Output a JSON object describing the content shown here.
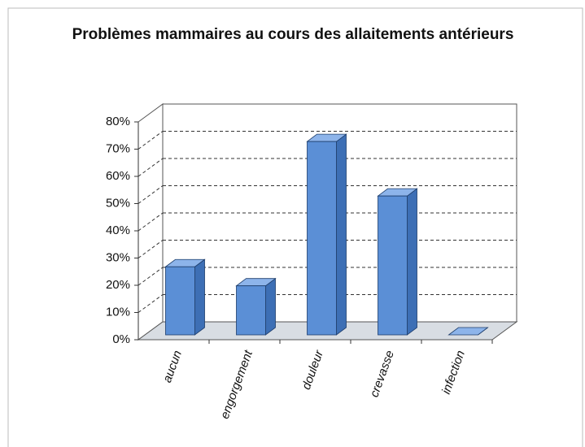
{
  "chart_data": {
    "type": "bar3d",
    "title": "Problèmes mammaires au cours des allaitements antérieurs",
    "categories": [
      "aucun",
      "engorgement",
      "douleur",
      "crevasse",
      "infection"
    ],
    "values": [
      25,
      18,
      71,
      51,
      0
    ],
    "color": "#5b8fd6",
    "ylim": [
      0,
      80
    ],
    "yticks": [
      {
        "value": 0,
        "label": "0%"
      },
      {
        "value": 10,
        "label": "10%"
      },
      {
        "value": 20,
        "label": "20%"
      },
      {
        "value": 30,
        "label": "30%"
      },
      {
        "value": 40,
        "label": "40%"
      },
      {
        "value": 50,
        "label": "50%"
      },
      {
        "value": 60,
        "label": "60%"
      },
      {
        "value": 70,
        "label": "70%"
      },
      {
        "value": 80,
        "label": "80%"
      }
    ],
    "grid": true
  }
}
